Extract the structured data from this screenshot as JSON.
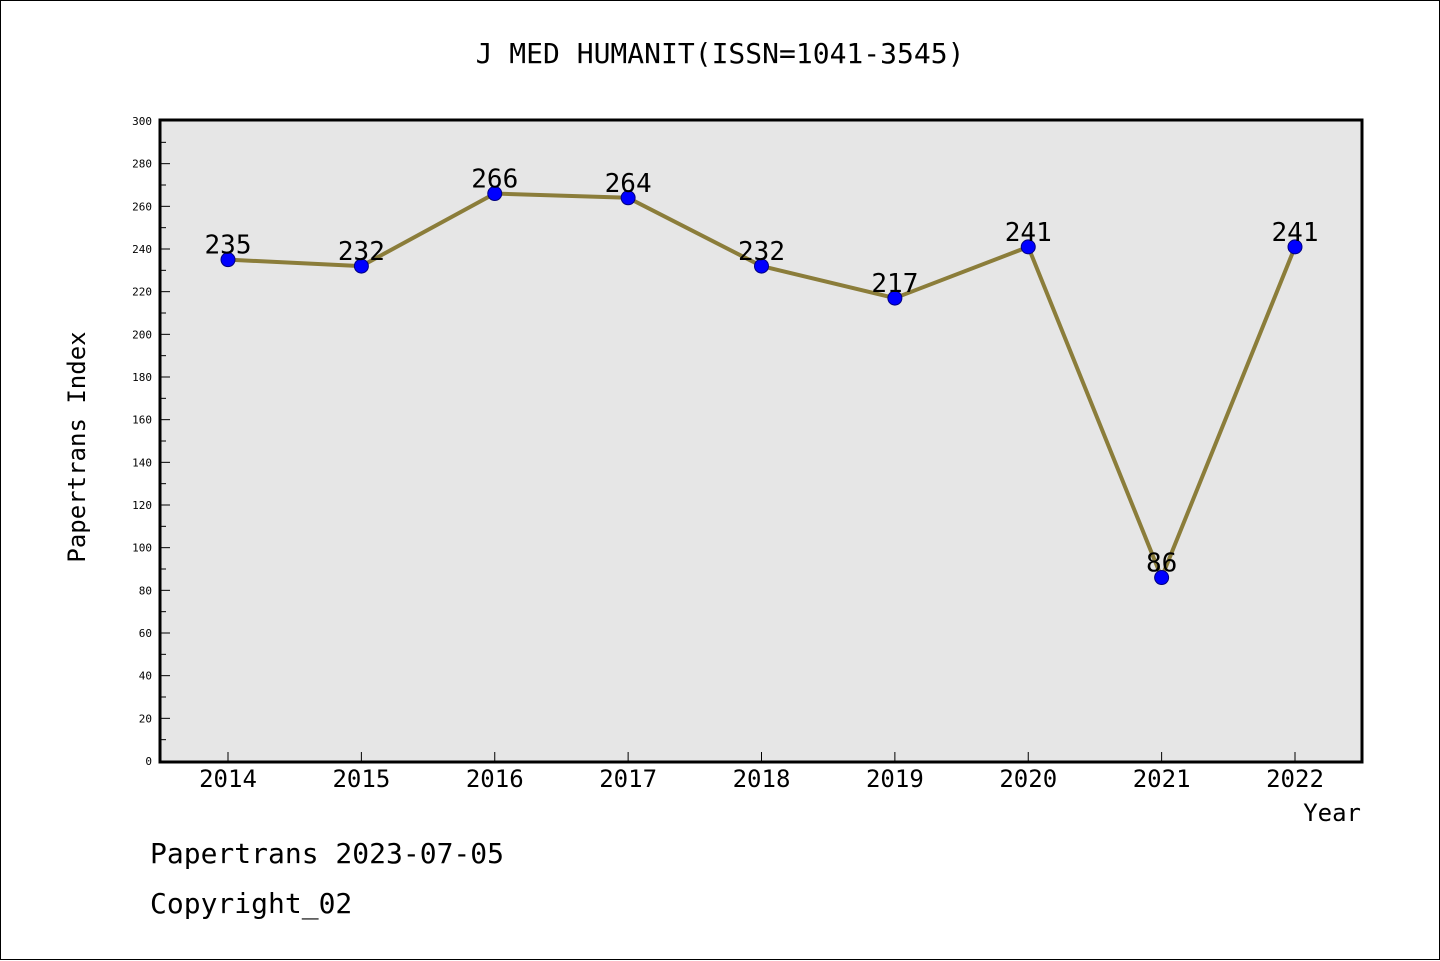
{
  "chart_data": {
    "type": "line",
    "title": "J MED HUMANIT(ISSN=1041-3545)",
    "xlabel": "Year",
    "ylabel": "Papertrans Index",
    "categories": [
      "2014",
      "2015",
      "2016",
      "2017",
      "2018",
      "2019",
      "2020",
      "2021",
      "2022"
    ],
    "values": [
      235,
      232,
      266,
      264,
      232,
      217,
      241,
      86,
      241
    ],
    "ylim": [
      0,
      300
    ],
    "yticks": [
      0,
      20,
      40,
      60,
      80,
      100,
      120,
      140,
      160,
      180,
      200,
      220,
      240,
      260,
      280,
      300
    ],
    "grid": false,
    "data_labels": true,
    "colors": {
      "plot_background": "#e6e6e6",
      "line": "#8b7d3a",
      "marker": "#0000ff",
      "marker_edge": "#000080"
    }
  },
  "footer": {
    "line1": "Papertrans 2023-07-05",
    "line2": "Copyright_02"
  }
}
